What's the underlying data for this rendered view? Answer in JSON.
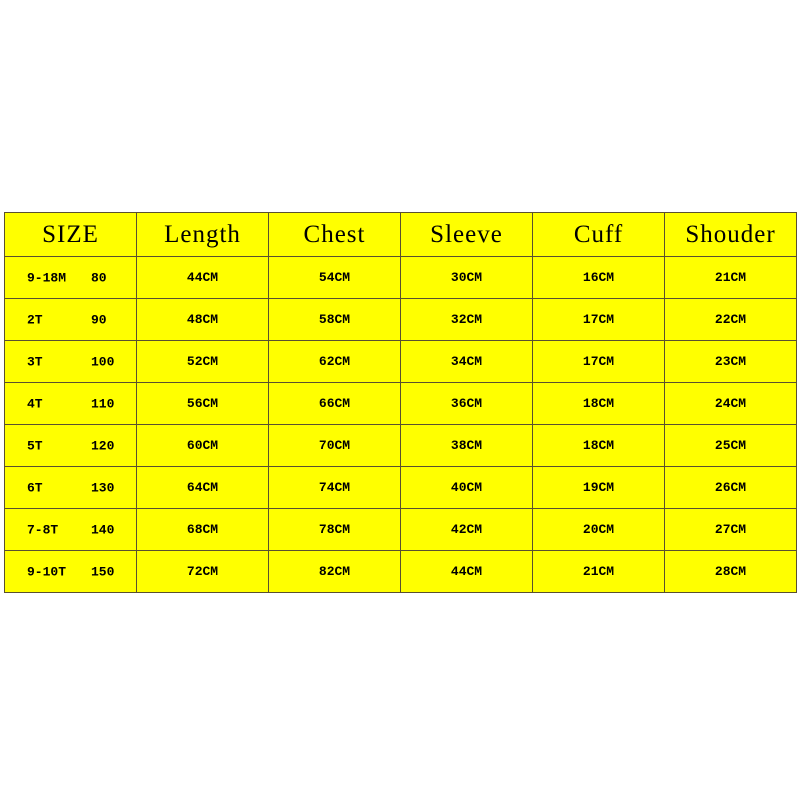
{
  "headers": [
    "SIZE",
    "Length",
    "Chest",
    "Sleeve",
    "Cuff",
    "Shouder"
  ],
  "rows": [
    {
      "size": "9-18M",
      "height": "80",
      "length": "44CM",
      "chest": "54CM",
      "sleeve": "30CM",
      "cuff": "16CM",
      "shoulder": "21CM"
    },
    {
      "size": "2T",
      "height": "90",
      "length": "48CM",
      "chest": "58CM",
      "sleeve": "32CM",
      "cuff": "17CM",
      "shoulder": "22CM"
    },
    {
      "size": "3T",
      "height": "100",
      "length": "52CM",
      "chest": "62CM",
      "sleeve": "34CM",
      "cuff": "17CM",
      "shoulder": "23CM"
    },
    {
      "size": "4T",
      "height": "110",
      "length": "56CM",
      "chest": "66CM",
      "sleeve": "36CM",
      "cuff": "18CM",
      "shoulder": "24CM"
    },
    {
      "size": "5T",
      "height": "120",
      "length": "60CM",
      "chest": "70CM",
      "sleeve": "38CM",
      "cuff": "18CM",
      "shoulder": "25CM"
    },
    {
      "size": "6T",
      "height": "130",
      "length": "64CM",
      "chest": "74CM",
      "sleeve": "40CM",
      "cuff": "19CM",
      "shoulder": "26CM"
    },
    {
      "size": "7-8T",
      "height": "140",
      "length": "68CM",
      "chest": "78CM",
      "sleeve": "42CM",
      "cuff": "20CM",
      "shoulder": "27CM"
    },
    {
      "size": "9-10T",
      "height": "150",
      "length": "72CM",
      "chest": "82CM",
      "sleeve": "44CM",
      "cuff": "21CM",
      "shoulder": "28CM"
    }
  ],
  "colors": {
    "cell_background": "#ffff00",
    "border": "#5a5030",
    "text": "#000000"
  }
}
